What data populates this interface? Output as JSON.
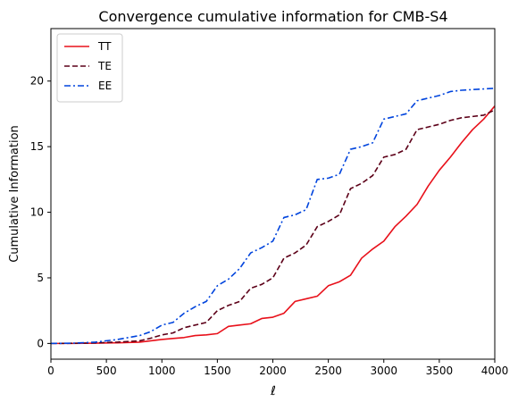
{
  "chart_data": {
    "type": "line",
    "title": "Convergence cumulative information for CMB-S4",
    "xlabel": "ℓ",
    "ylabel": "Cumulative Information",
    "xlim": [
      0,
      4000
    ],
    "ylim": [
      -1.2,
      24
    ],
    "xticks": [
      0,
      500,
      1000,
      1500,
      2000,
      2500,
      3000,
      3500,
      4000
    ],
    "yticks": [
      0,
      5,
      10,
      15,
      20
    ],
    "grid": false,
    "legend_position": "top-left",
    "x": [
      0,
      200,
      400,
      600,
      800,
      900,
      1000,
      1100,
      1200,
      1300,
      1400,
      1500,
      1600,
      1700,
      1800,
      1900,
      2000,
      2100,
      2200,
      2300,
      2400,
      2500,
      2600,
      2700,
      2800,
      2900,
      3000,
      3100,
      3200,
      3300,
      3400,
      3500,
      3600,
      3700,
      3800,
      3900,
      4000
    ],
    "series": [
      {
        "name": "TT",
        "color": "#e8101a",
        "dash": "solid",
        "values": [
          0,
          0,
          0.02,
          0.05,
          0.1,
          0.2,
          0.3,
          0.38,
          0.45,
          0.6,
          0.65,
          0.75,
          1.3,
          1.4,
          1.5,
          1.9,
          2.0,
          2.3,
          3.2,
          3.4,
          3.6,
          4.4,
          4.7,
          5.2,
          6.5,
          7.2,
          7.8,
          8.9,
          9.7,
          10.6,
          12.0,
          13.2,
          14.2,
          15.3,
          16.3,
          17.1,
          18.1
        ]
      },
      {
        "name": "TE",
        "color": "#5c0018",
        "dash": "dashed",
        "values": [
          0,
          0.01,
          0.04,
          0.1,
          0.2,
          0.4,
          0.65,
          0.8,
          1.2,
          1.4,
          1.6,
          2.5,
          2.9,
          3.2,
          4.2,
          4.5,
          5.0,
          6.5,
          6.9,
          7.5,
          8.9,
          9.3,
          9.8,
          11.8,
          12.2,
          12.8,
          14.2,
          14.4,
          14.8,
          16.3,
          16.5,
          16.7,
          17.0,
          17.2,
          17.3,
          17.4,
          17.8
        ]
      },
      {
        "name": "EE",
        "color": "#0044dd",
        "dash": "dashdot",
        "values": [
          0,
          0.02,
          0.1,
          0.3,
          0.6,
          0.9,
          1.4,
          1.6,
          2.3,
          2.8,
          3.2,
          4.4,
          4.9,
          5.7,
          6.9,
          7.3,
          7.8,
          9.6,
          9.8,
          10.2,
          12.5,
          12.6,
          12.9,
          14.8,
          15.0,
          15.3,
          17.1,
          17.3,
          17.5,
          18.5,
          18.7,
          18.9,
          19.2,
          19.3,
          19.35,
          19.4,
          19.45
        ]
      }
    ]
  }
}
